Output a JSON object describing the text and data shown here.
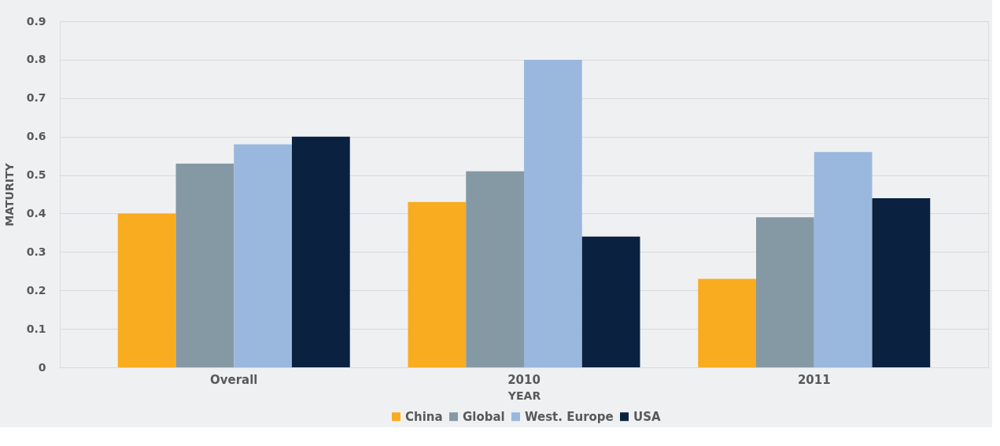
{
  "chart_data": {
    "type": "bar",
    "xlabel": "YEAR",
    "ylabel": "MATURITY",
    "categories": [
      "Overall",
      "2010",
      "2011"
    ],
    "series": [
      {
        "name": "China",
        "color": "#f9ac1f",
        "values": [
          0.4,
          0.43,
          0.23
        ]
      },
      {
        "name": "Global",
        "color": "#8599a5",
        "values": [
          0.53,
          0.51,
          0.39
        ]
      },
      {
        "name": "West. Europe",
        "color": "#9ab8de",
        "values": [
          0.58,
          0.8,
          0.56
        ]
      },
      {
        "name": "USA",
        "color": "#0a2240",
        "values": [
          0.6,
          0.34,
          0.44
        ]
      }
    ],
    "ylim": [
      0,
      0.9
    ],
    "yticks": [
      0,
      0.1,
      0.2,
      0.3,
      0.4,
      0.5,
      0.6,
      0.7,
      0.8,
      0.9
    ],
    "grid": "y",
    "legend": "bottom"
  }
}
